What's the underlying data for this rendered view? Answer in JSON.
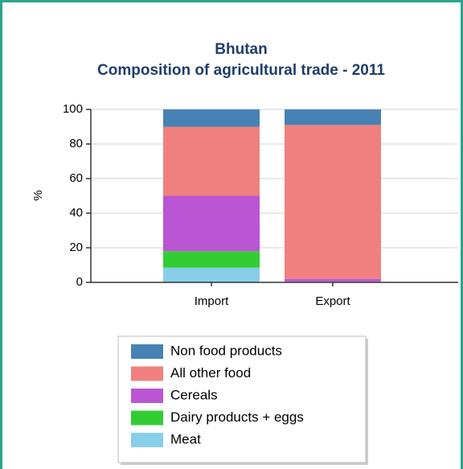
{
  "chart_data": {
    "type": "stacked_bar",
    "title": "Bhutan",
    "subtitle": "Composition of agricultural trade - 2011",
    "ylabel": "%",
    "categories": [
      "Import",
      "Export"
    ],
    "series": [
      {
        "name": "Meat",
        "color": "#87ceeb",
        "values": [
          8.5,
          0.5
        ]
      },
      {
        "name": "Dairy products + eggs",
        "color": "#32cd32",
        "values": [
          9.5,
          0
        ]
      },
      {
        "name": "Cereals",
        "color": "#ba55d3",
        "values": [
          32,
          1.5
        ]
      },
      {
        "name": "All other food",
        "color": "#f08080",
        "values": [
          40,
          89
        ]
      },
      {
        "name": "Non food products",
        "color": "#4682b4",
        "values": [
          10,
          9
        ]
      }
    ],
    "ylim": [
      0,
      100
    ],
    "yticks": [
      0,
      20,
      40,
      60,
      80,
      100
    ],
    "grid": true
  }
}
